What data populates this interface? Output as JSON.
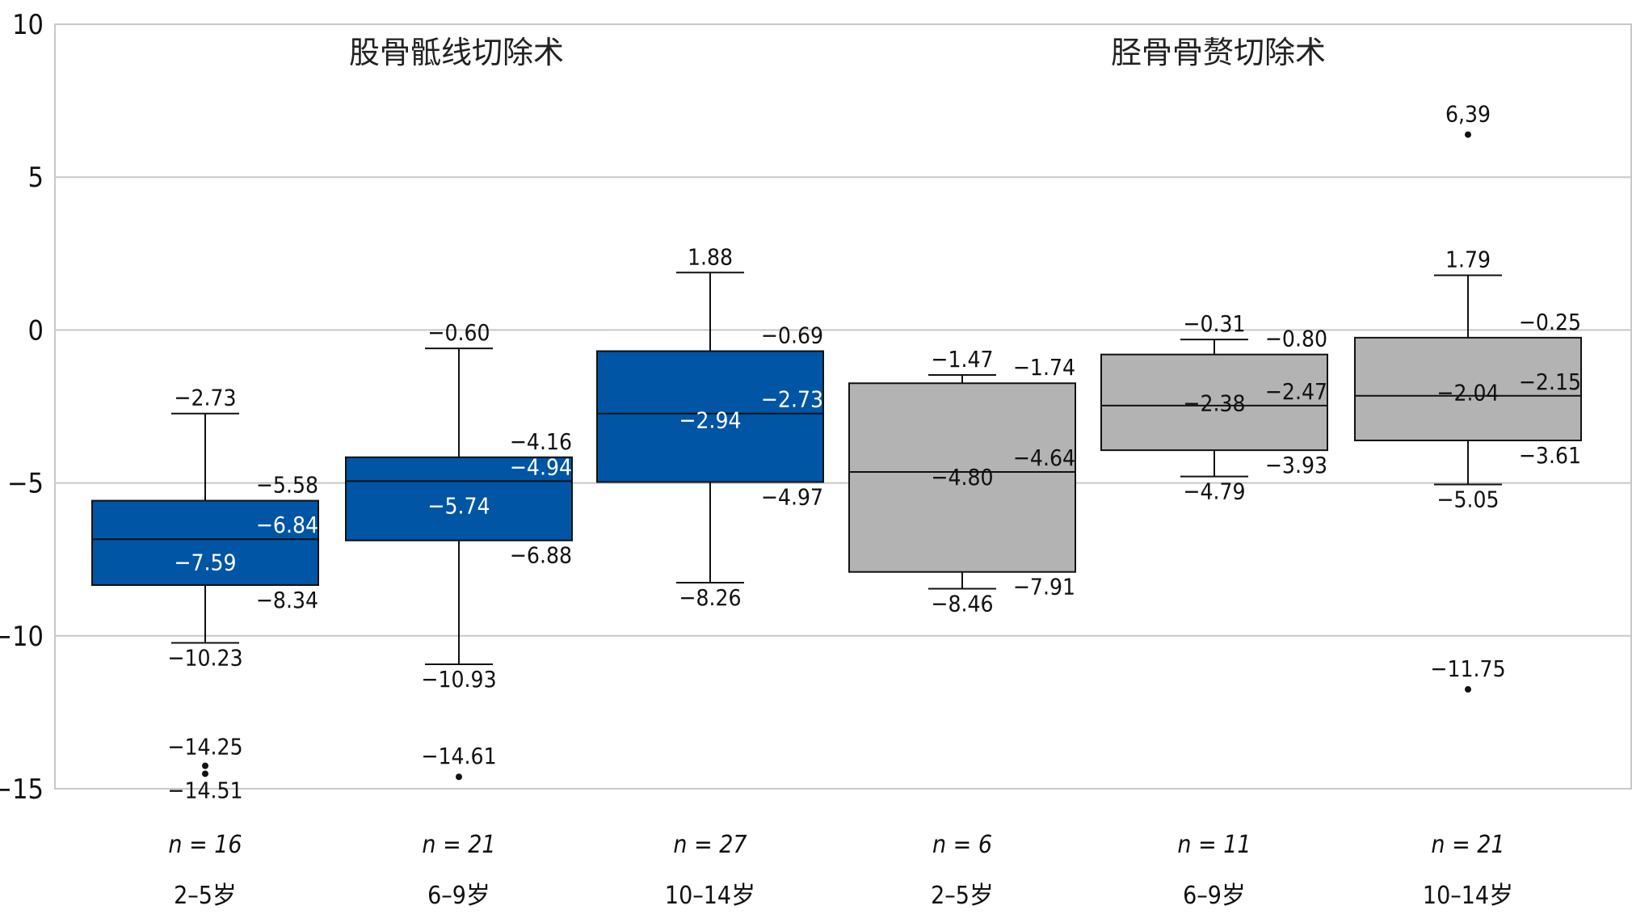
{
  "chart_data": {
    "type": "boxplot",
    "y_ticks": [
      "10",
      "5",
      "0",
      "−5",
      "−10",
      "−15"
    ],
    "y_tick_values": [
      10,
      5,
      0,
      -5,
      -10,
      -15
    ],
    "ylim": [
      -15,
      10
    ],
    "grid": true,
    "groups": [
      {
        "title": "股骨骶线切除术",
        "color": "#0055a5"
      },
      {
        "title": "胫骨骨赘切除术",
        "color": "#b3b3b3"
      }
    ],
    "boxes": [
      {
        "group": 0,
        "category": "2–5岁",
        "n_label": "n = 16",
        "n": 16,
        "whisker_high": -2.73,
        "q3": -5.58,
        "median": -6.84,
        "mean": -7.59,
        "q1": -8.34,
        "whisker_low": -10.23,
        "outliers": [
          -14.25,
          -14.51
        ],
        "labels": {
          "whisker_high": "−2.73",
          "q3": "−5.58",
          "median": "−6.84",
          "mean": "−7.59",
          "q1": "−8.34",
          "whisker_low": "−10.23",
          "outliers": [
            "−14.25",
            "−14.51"
          ]
        }
      },
      {
        "group": 0,
        "category": "6–9岁",
        "n_label": "n = 21",
        "n": 21,
        "whisker_high": -0.6,
        "q3": -4.16,
        "median": -4.94,
        "mean": -5.74,
        "q1": -6.88,
        "whisker_low": -10.93,
        "outliers": [
          -14.61
        ],
        "labels": {
          "whisker_high": "−0.60",
          "q3": "−4.16",
          "median": "−4.94",
          "mean": "−5.74",
          "q1": "−6.88",
          "whisker_low": "−10.93",
          "outliers": [
            "−14.61"
          ]
        }
      },
      {
        "group": 0,
        "category": "10–14岁",
        "n_label": "n = 27",
        "n": 27,
        "whisker_high": 1.88,
        "q3": -0.69,
        "median": -2.73,
        "mean": -2.94,
        "q1": -4.97,
        "whisker_low": -8.26,
        "outliers": [],
        "labels": {
          "whisker_high": "1.88",
          "q3": "−0.69",
          "median": "−2.73",
          "mean": "−2.94",
          "q1": "−4.97",
          "whisker_low": "−8.26",
          "outliers": []
        }
      },
      {
        "group": 1,
        "category": "2–5岁",
        "n_label": "n = 6",
        "n": 6,
        "whisker_high": -1.47,
        "q3": -1.74,
        "median": -4.64,
        "mean": -4.8,
        "q1": -7.91,
        "whisker_low": -8.46,
        "outliers": [],
        "labels": {
          "whisker_high": "−1.47",
          "q3": "−1.74",
          "median": "−4.64",
          "mean": "−4.80",
          "q1": "−7.91",
          "whisker_low": "−8.46",
          "outliers": []
        }
      },
      {
        "group": 1,
        "category": "6–9岁",
        "n_label": "n = 11",
        "n": 11,
        "whisker_high": -0.31,
        "q3": -0.8,
        "median": -2.47,
        "mean": -2.38,
        "q1": -3.93,
        "whisker_low": -4.79,
        "outliers": [],
        "labels": {
          "whisker_high": "−0.31",
          "q3": "−0.80",
          "median": "−2.47",
          "mean": "−2.38",
          "q1": "−3.93",
          "whisker_low": "−4.79",
          "outliers": []
        }
      },
      {
        "group": 1,
        "category": "10–14岁",
        "n_label": "n = 21",
        "n": 21,
        "whisker_high": 1.79,
        "q3": -0.25,
        "median": -2.15,
        "mean": -2.04,
        "q1": -3.61,
        "whisker_low": -5.05,
        "outliers": [
          6.39,
          -11.75
        ],
        "labels": {
          "whisker_high": "1.79",
          "q3": "−0.25",
          "median": "−2.15",
          "mean": "−2.04",
          "q1": "−3.61",
          "whisker_low": "−5.05",
          "outliers": [
            "6,39",
            "−11.75"
          ]
        }
      }
    ]
  }
}
